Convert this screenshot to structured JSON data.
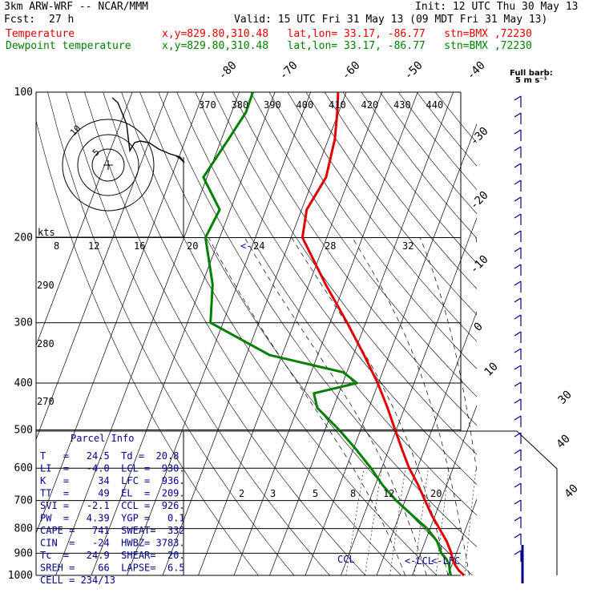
{
  "header": {
    "model": "3km ARW-WRF -- NCAR/MMM",
    "init": "Init: 12 UTC Thu 30 May 13",
    "fcst_label": "Fcst:",
    "fcst_value": "27 h",
    "valid": "Valid: 15 UTC Fri 31 May 13 (09 MDT Fri 31 May 13)",
    "temp_name": "Temperature",
    "temp_info": "x,y=829.80,310.48   lat,lon= 33.17, -86.77   stn=BMX ,72230",
    "dew_name": "Dewpoint temperature",
    "dew_info": "x,y=829.80,310.48   lat,lon= 33.17, -86.77   stn=BMX ,72230",
    "full_barb_line1": "Full barb:",
    "full_barb_line2": "5 m s⁻¹"
  },
  "colors": {
    "temperature": "#e00000",
    "dewpoint": "#008000",
    "wind": "#00008b",
    "grid": "#000000"
  },
  "parcel_info": {
    "title": "Parcel Info",
    "rows": [
      "T   =   24.5  Td =  20.8",
      "LI  =   -4.0  LCL =  930.",
      "K   =     34  LFC =  936.",
      "TT  =     49  EL  =  209.",
      "SVI =   -2.1  CCL =  926.",
      "PW  =   4.39  YGP =   0.1",
      "CAPE =   741  SWEAT=  332",
      "CIN  =   -24  HWBZ= 3783.",
      "Tc  =   24.9  SHEAR=  20.",
      "SREH =    66  LAPSE=  6.5",
      "CELL = 234/13"
    ]
  },
  "level_markers": {
    "ccl": "CCL",
    "lcl": "<-LCL",
    "lfc": "<-LFC",
    "hodo_units": "kts"
  },
  "chart_data": {
    "type": "line",
    "title": "Skew-T log-P",
    "y_axis": {
      "scale": "log",
      "unit": "hPa",
      "range": [
        1000,
        100
      ],
      "ticks": [
        100,
        200,
        300,
        400,
        500,
        600,
        700,
        800,
        900,
        1000
      ]
    },
    "temperature_ticks": [
      "40",
      "30",
      "20",
      "10",
      "0",
      "-10",
      "-20",
      "-30",
      "-40",
      "-50",
      "-60",
      "-70",
      "-80"
    ],
    "theta_e_ticks": [
      "370",
      "380",
      "390",
      "400",
      "410",
      "420",
      "430",
      "440"
    ],
    "theta_ticks": [
      "290",
      "280",
      "270"
    ],
    "mixing_ratio_ticks": [
      "2",
      "3",
      "5",
      "8",
      "12",
      "20"
    ],
    "hodograph_ticks": [
      "8",
      "12",
      "16",
      "20",
      "24",
      "28",
      "32"
    ],
    "hodograph_ring_labels": [
      "5",
      "10"
    ],
    "series": [
      {
        "name": "Temperature",
        "color": "#e00000",
        "points": [
          {
            "p": 1000,
            "t": 24.5
          },
          {
            "p": 975,
            "t": 22.4
          },
          {
            "p": 950,
            "t": 20.8
          },
          {
            "p": 925,
            "t": 19.5
          },
          {
            "p": 900,
            "t": 18.6
          },
          {
            "p": 850,
            "t": 16.0
          },
          {
            "p": 800,
            "t": 12.6
          },
          {
            "p": 750,
            "t": 9.0
          },
          {
            "p": 700,
            "t": 5.6
          },
          {
            "p": 650,
            "t": 2.0
          },
          {
            "p": 600,
            "t": -2.3
          },
          {
            "p": 550,
            "t": -6.2
          },
          {
            "p": 500,
            "t": -10.3
          },
          {
            "p": 450,
            "t": -14.8
          },
          {
            "p": 400,
            "t": -20.2
          },
          {
            "p": 350,
            "t": -27.0
          },
          {
            "p": 300,
            "t": -35.2
          },
          {
            "p": 250,
            "t": -45.3
          },
          {
            "p": 200,
            "t": -56.8
          },
          {
            "p": 175,
            "t": -58.6
          },
          {
            "p": 150,
            "t": -56.6
          },
          {
            "p": 125,
            "t": -58.2
          },
          {
            "p": 110,
            "t": -60.4
          },
          {
            "p": 100,
            "t": -62.3
          }
        ]
      },
      {
        "name": "Dewpoint temperature",
        "color": "#008000",
        "points": [
          {
            "p": 1000,
            "t": 20.8
          },
          {
            "p": 975,
            "t": 19.9
          },
          {
            "p": 950,
            "t": 19.2
          },
          {
            "p": 925,
            "t": 17.8
          },
          {
            "p": 900,
            "t": 15.8
          },
          {
            "p": 850,
            "t": 13.3
          },
          {
            "p": 800,
            "t": 9.2
          },
          {
            "p": 750,
            "t": 3.5
          },
          {
            "p": 700,
            "t": -2.5
          },
          {
            "p": 650,
            "t": -8.0
          },
          {
            "p": 600,
            "t": -13.0
          },
          {
            "p": 550,
            "t": -19.0
          },
          {
            "p": 500,
            "t": -26.0
          },
          {
            "p": 450,
            "t": -34.5
          },
          {
            "p": 420,
            "t": -37.0
          },
          {
            "p": 400,
            "t": -26.0
          },
          {
            "p": 380,
            "t": -31.0
          },
          {
            "p": 350,
            "t": -53.5
          },
          {
            "p": 300,
            "t": -73.5
          },
          {
            "p": 250,
            "t": -77.0
          },
          {
            "p": 200,
            "t": -84.0
          },
          {
            "p": 175,
            "t": -83.0
          },
          {
            "p": 150,
            "t": -91.0
          },
          {
            "p": 125,
            "t": -88.0
          },
          {
            "p": 110,
            "t": -86.0
          },
          {
            "p": 100,
            "t": -86.2
          }
        ]
      }
    ],
    "wind_barbs_unit": "m/s"
  }
}
